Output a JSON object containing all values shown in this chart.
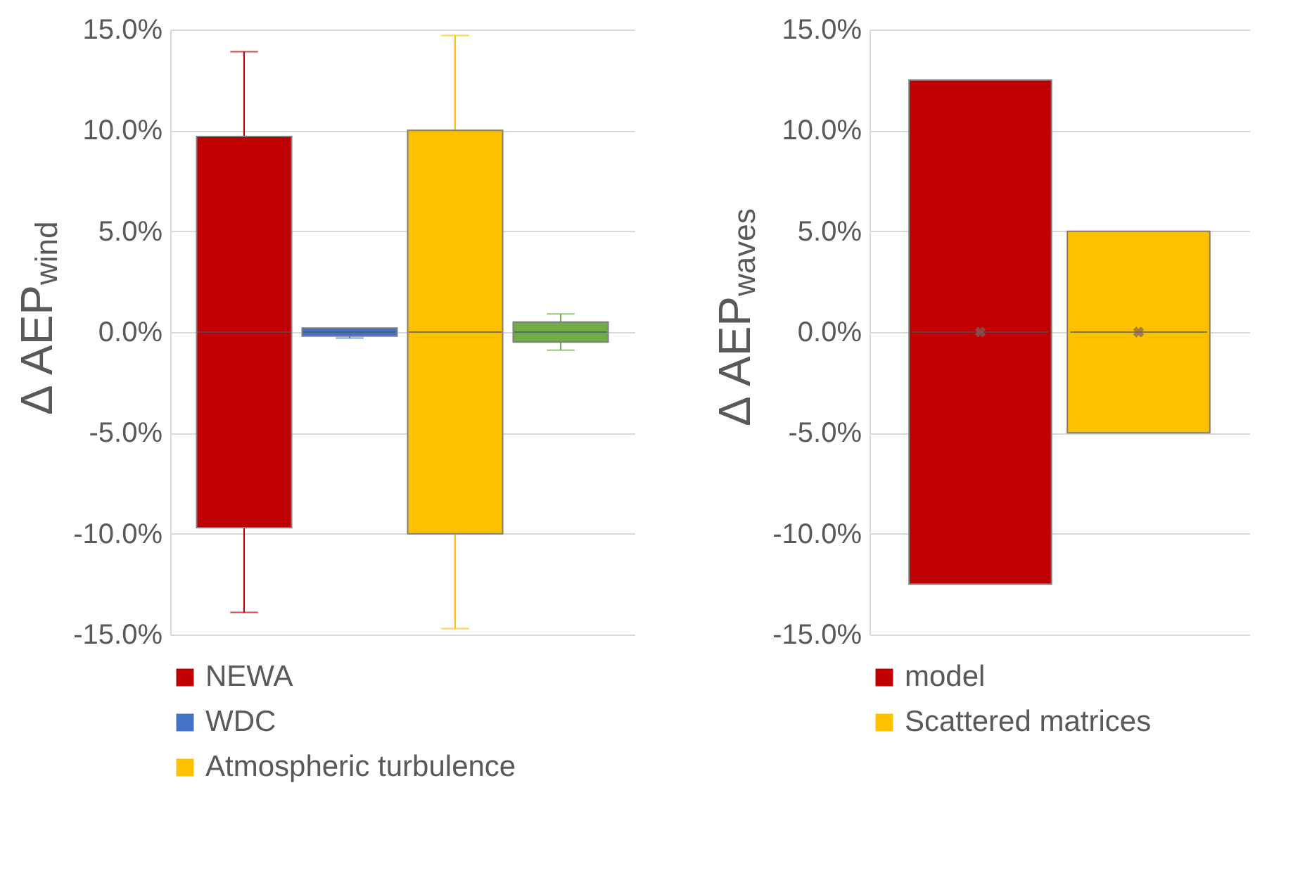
{
  "chart_data": [
    {
      "type": "box",
      "ylabel": "Δ AEP$_{wind}$",
      "categories": [
        null
      ],
      "ylim": [
        -15,
        15
      ],
      "yticks": [
        {
          "value": -15,
          "label": "-15.0%"
        },
        {
          "value": -10,
          "label": "-10.0%"
        },
        {
          "value": -5,
          "label": "-5.0%"
        },
        {
          "value": 0,
          "label": "0.0%"
        },
        {
          "value": 5,
          "label": "5.0%"
        },
        {
          "value": 10,
          "label": "10.0%"
        },
        {
          "value": 15,
          "label": "15.0%"
        }
      ],
      "grid": "y",
      "legend": "bottom",
      "series": [
        {
          "name": "NEWA",
          "color": "#c00000",
          "boxes": [
            {
              "low": -13.9,
              "q1": -9.7,
              "median": 0,
              "q3": 9.7,
              "high": 13.9
            }
          ]
        },
        {
          "name": "WDC",
          "color": "#4472c4",
          "boxes": [
            {
              "low": -0.3,
              "q1": -0.2,
              "median": 0,
              "q3": 0.2,
              "high": 0.2
            }
          ]
        },
        {
          "name": "Atmospheric turbulence",
          "color": "#ffc000",
          "boxes": [
            {
              "low": -14.7,
              "q1": -10.0,
              "median": 0,
              "q3": 10.0,
              "high": 14.7
            }
          ]
        },
        {
          "color": "#70ad47",
          "boxes": [
            {
              "low": -0.9,
              "q1": -0.5,
              "median": 0,
              "q3": 0.5,
              "high": 0.9
            }
          ]
        }
      ]
    },
    {
      "type": "box",
      "ylabel": "Δ AEP$_{waves}$",
      "categories": [
        null
      ],
      "ylim": [
        -15,
        15
      ],
      "yticks": [
        {
          "value": -15,
          "label": "-15.0%"
        },
        {
          "value": -10,
          "label": "-10.0%"
        },
        {
          "value": -5,
          "label": "-5.0%"
        },
        {
          "value": 0,
          "label": "0.0%"
        },
        {
          "value": 5,
          "label": "5.0%"
        },
        {
          "value": 10,
          "label": "10.0%"
        },
        {
          "value": 15,
          "label": "15.0%"
        }
      ],
      "grid": "y",
      "legend": "bottom",
      "marker": "cross",
      "series": [
        {
          "name": "model",
          "color": "#c00000",
          "boxes": [
            {
              "low": -12.5,
              "q1": -12.5,
              "median": 0,
              "q3": 12.5,
              "high": 12.5,
              "mean": 0
            }
          ]
        },
        {
          "name": "Scattered matrices",
          "color": "#ffc000",
          "boxes": [
            {
              "low": -5.0,
              "q1": -5.0,
              "median": 0,
              "q3": 5.0,
              "high": 5.0,
              "mean": 0
            }
          ]
        }
      ]
    }
  ]
}
